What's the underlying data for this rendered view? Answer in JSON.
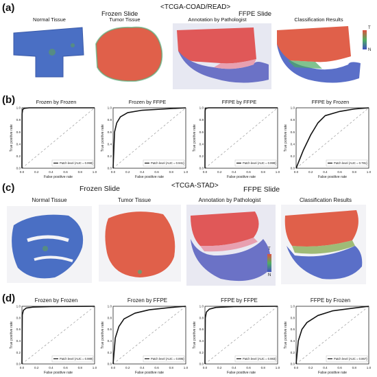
{
  "section_a": {
    "letter": "(a)",
    "title": "<TCGA-COAD/READ>",
    "frozen_header": "Frozen Slide",
    "ffpe_header": "FFPE Slide",
    "images": [
      "Normal Tissue",
      "Tumor Tissue",
      "Annotation by Pathologist",
      "Classification Results"
    ],
    "scale": {
      "top": "T",
      "bottom": "N"
    }
  },
  "section_b": {
    "letter": "(b)",
    "plots": [
      {
        "title": "Frozen by Frozen",
        "legend": "Patch level (AUC = 0.998)"
      },
      {
        "title": "Frozen by FFPE",
        "legend": "Patch level (AUC = 0.941)"
      },
      {
        "title": "FFPE by FFPE",
        "legend": "Patch level (AUC = 0.999)"
      },
      {
        "title": "FFPE by Frozen",
        "legend": "Patch level (AUC = 0.781)"
      }
    ]
  },
  "section_c": {
    "letter": "(c)",
    "title": "<TCGA-STAD>",
    "frozen_header": "Frozen Slide",
    "ffpe_header": "FFPE Slide",
    "images": [
      "Normal Tissue",
      "Tumor Tissue",
      "Annotation by Pathologist",
      "Classification Results"
    ],
    "scale": {
      "top": "T",
      "bottom": "N"
    }
  },
  "section_d": {
    "letter": "(d)",
    "plots": [
      {
        "title": "Frozen by Frozen",
        "legend": "Patch level (AUC = 0.989)"
      },
      {
        "title": "Frozen by FFPE",
        "legend": "Patch level (AUC = 0.895)"
      },
      {
        "title": "FFPE by FFPE",
        "legend": "Patch level (AUC = 0.983)"
      },
      {
        "title": "FFPE by Frozen",
        "legend": "Patch level (AUC = 0.867)"
      }
    ]
  },
  "colors": {
    "normal": "#4a6fc4",
    "tumor": "#e0604a",
    "ffpe_blue": "#6b72c6",
    "ffpe_pink": "#e8a0b0"
  },
  "chart_data": [
    {
      "type": "line",
      "title": "Frozen by Frozen",
      "xlabel": "False positive rate",
      "ylabel": "True positive rate",
      "xlim": [
        0,
        1
      ],
      "ylim": [
        0,
        1
      ],
      "ticks": [
        "0.0",
        "0.2",
        "0.4",
        "0.6",
        "0.8",
        "1.0"
      ],
      "series": [
        {
          "name": "Patch level (AUC = 0.998)",
          "x": [
            0,
            0.002,
            0.01,
            0.03,
            0.1,
            1
          ],
          "y": [
            0,
            0.9,
            0.97,
            0.99,
            1,
            1
          ]
        }
      ]
    },
    {
      "type": "line",
      "title": "Frozen by FFPE",
      "xlabel": "False positive rate",
      "ylabel": "True positive rate",
      "xlim": [
        0,
        1
      ],
      "ylim": [
        0,
        1
      ],
      "ticks": [
        "0.0",
        "0.2",
        "0.4",
        "0.6",
        "0.8",
        "1.0"
      ],
      "series": [
        {
          "name": "Patch level (AUC = 0.941)",
          "x": [
            0,
            0.02,
            0.05,
            0.1,
            0.2,
            0.4,
            0.7,
            1
          ],
          "y": [
            0,
            0.6,
            0.75,
            0.85,
            0.92,
            0.96,
            0.98,
            1
          ]
        }
      ]
    },
    {
      "type": "line",
      "title": "FFPE by FFPE",
      "xlabel": "False positive rate",
      "ylabel": "True positive rate",
      "xlim": [
        0,
        1
      ],
      "ylim": [
        0,
        1
      ],
      "ticks": [
        "0.0",
        "0.2",
        "0.4",
        "0.6",
        "0.8",
        "1.0"
      ],
      "series": [
        {
          "name": "Patch level (AUC = 0.999)",
          "x": [
            0,
            0.002,
            0.01,
            0.05,
            1
          ],
          "y": [
            0,
            0.95,
            0.99,
            1,
            1
          ]
        }
      ]
    },
    {
      "type": "line",
      "title": "FFPE by Frozen",
      "xlabel": "False positive rate",
      "ylabel": "True positive rate",
      "xlim": [
        0,
        1
      ],
      "ylim": [
        0,
        1
      ],
      "ticks": [
        "0.0",
        "0.2",
        "0.4",
        "0.6",
        "0.8",
        "1.0"
      ],
      "series": [
        {
          "name": "Patch level (AUC = 0.781)",
          "x": [
            0,
            0.05,
            0.1,
            0.2,
            0.3,
            0.4,
            0.6,
            0.8,
            1
          ],
          "y": [
            0,
            0.15,
            0.3,
            0.55,
            0.75,
            0.87,
            0.94,
            0.98,
            1
          ]
        }
      ]
    },
    {
      "type": "line",
      "title": "Frozen by Frozen",
      "xlabel": "False positive rate",
      "ylabel": "True positive rate",
      "xlim": [
        0,
        1
      ],
      "ylim": [
        0,
        1
      ],
      "ticks": [
        "0.0",
        "0.2",
        "0.4",
        "0.6",
        "0.8",
        "1.0"
      ],
      "series": [
        {
          "name": "Patch level (AUC = 0.989)",
          "x": [
            0,
            0.005,
            0.02,
            0.06,
            0.15,
            0.4,
            1
          ],
          "y": [
            0,
            0.85,
            0.93,
            0.97,
            0.985,
            0.995,
            1
          ]
        }
      ]
    },
    {
      "type": "line",
      "title": "Frozen by FFPE",
      "xlabel": "False positive rate",
      "ylabel": "True positive rate",
      "xlim": [
        0,
        1
      ],
      "ylim": [
        0,
        1
      ],
      "ticks": [
        "0.0",
        "0.2",
        "0.4",
        "0.6",
        "0.8",
        "1.0"
      ],
      "series": [
        {
          "name": "Patch level (AUC = 0.895)",
          "x": [
            0,
            0.03,
            0.08,
            0.15,
            0.3,
            0.5,
            0.8,
            1
          ],
          "y": [
            0,
            0.45,
            0.65,
            0.78,
            0.88,
            0.94,
            0.98,
            1
          ]
        }
      ]
    },
    {
      "type": "line",
      "title": "FFPE by FFPE",
      "xlabel": "False positive rate",
      "ylabel": "True positive rate",
      "xlim": [
        0,
        1
      ],
      "ylim": [
        0,
        1
      ],
      "ticks": [
        "0.0",
        "0.2",
        "0.4",
        "0.6",
        "0.8",
        "1.0"
      ],
      "series": [
        {
          "name": "Patch level (AUC = 0.983)",
          "x": [
            0,
            0.005,
            0.02,
            0.06,
            0.15,
            0.4,
            1
          ],
          "y": [
            0,
            0.8,
            0.9,
            0.95,
            0.98,
            0.995,
            1
          ]
        }
      ]
    },
    {
      "type": "line",
      "title": "FFPE by Frozen",
      "xlabel": "False positive rate",
      "ylabel": "True positive rate",
      "xlim": [
        0,
        1
      ],
      "ylim": [
        0,
        1
      ],
      "ticks": [
        "0.0",
        "0.2",
        "0.4",
        "0.6",
        "0.8",
        "1.0"
      ],
      "series": [
        {
          "name": "Patch level (AUC = 0.867)",
          "x": [
            0,
            0.03,
            0.08,
            0.15,
            0.3,
            0.5,
            0.8,
            1
          ],
          "y": [
            0,
            0.4,
            0.6,
            0.72,
            0.84,
            0.92,
            0.97,
            1
          ]
        }
      ]
    }
  ]
}
